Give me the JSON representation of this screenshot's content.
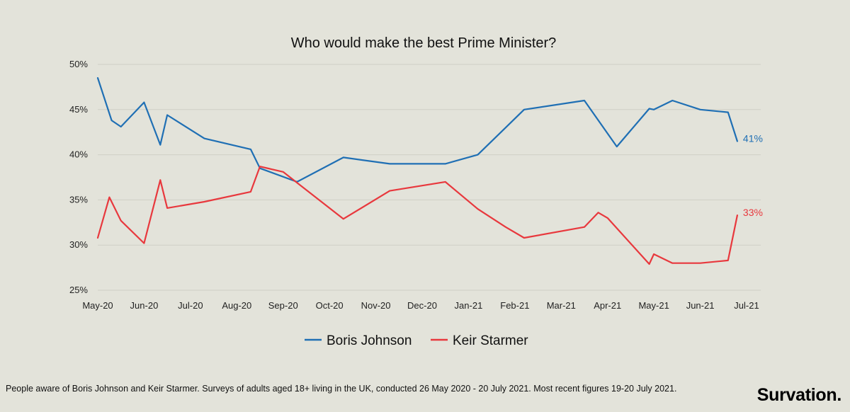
{
  "chart_data": {
    "type": "line",
    "title": "Who would make the best Prime Minister?",
    "xlabel": "",
    "ylabel": "",
    "ylim": [
      25,
      50
    ],
    "y_ticks": [
      "25%",
      "30%",
      "35%",
      "40%",
      "45%",
      "50%"
    ],
    "y_tick_values": [
      25,
      30,
      35,
      40,
      45,
      50
    ],
    "x_ticks": [
      "May-20",
      "Jun-20",
      "Jul-20",
      "Aug-20",
      "Sep-20",
      "Oct-20",
      "Nov-20",
      "Dec-20",
      "Jan-21",
      "Feb-21",
      "Mar-21",
      "Apr-21",
      "May-21",
      "Jun-21",
      "Jul-21"
    ],
    "x_unit": "months since May-20",
    "grid": true,
    "legend_position": "bottom",
    "series": [
      {
        "name": "Boris Johnson",
        "color": "#1f6fb4",
        "end_label": "41%",
        "points": [
          [
            0.0,
            48.5
          ],
          [
            0.3,
            43.8
          ],
          [
            0.5,
            43.1
          ],
          [
            1.0,
            45.8
          ],
          [
            1.35,
            41.1
          ],
          [
            1.5,
            44.4
          ],
          [
            2.3,
            41.8
          ],
          [
            3.3,
            40.6
          ],
          [
            3.5,
            38.5
          ],
          [
            4.3,
            37.0
          ],
          [
            5.3,
            39.7
          ],
          [
            6.3,
            39.0
          ],
          [
            7.5,
            39.0
          ],
          [
            8.2,
            40.0
          ],
          [
            8.8,
            43.0
          ],
          [
            9.2,
            45.0
          ],
          [
            10.5,
            46.0
          ],
          [
            11.2,
            40.9
          ],
          [
            11.9,
            45.1
          ],
          [
            12.0,
            45.0
          ],
          [
            12.4,
            46.0
          ],
          [
            13.0,
            45.0
          ],
          [
            13.6,
            44.7
          ],
          [
            13.8,
            41.5
          ]
        ]
      },
      {
        "name": "Keir Starmer",
        "color": "#e8383d",
        "end_label": "33%",
        "points": [
          [
            0.0,
            30.8
          ],
          [
            0.25,
            35.3
          ],
          [
            0.5,
            32.7
          ],
          [
            1.0,
            30.2
          ],
          [
            1.35,
            37.2
          ],
          [
            1.5,
            34.1
          ],
          [
            2.3,
            34.8
          ],
          [
            3.3,
            35.9
          ],
          [
            3.5,
            38.7
          ],
          [
            4.0,
            38.1
          ],
          [
            5.3,
            32.9
          ],
          [
            6.3,
            36.0
          ],
          [
            7.5,
            37.0
          ],
          [
            8.2,
            34.0
          ],
          [
            8.8,
            32.0
          ],
          [
            9.2,
            30.8
          ],
          [
            10.5,
            32.0
          ],
          [
            10.8,
            33.6
          ],
          [
            11.0,
            33.0
          ],
          [
            11.9,
            27.9
          ],
          [
            12.0,
            29.0
          ],
          [
            12.4,
            28.0
          ],
          [
            13.0,
            28.0
          ],
          [
            13.6,
            28.3
          ],
          [
            13.8,
            33.3
          ]
        ]
      }
    ]
  },
  "footnote": "People aware of Boris Johnson and Keir Starmer. Surveys of adults aged 18+ living in the UK, conducted 26 May 2020 - 20 July 2021.  Most recent figures 19-20 July 2021.",
  "brand": "Survation."
}
